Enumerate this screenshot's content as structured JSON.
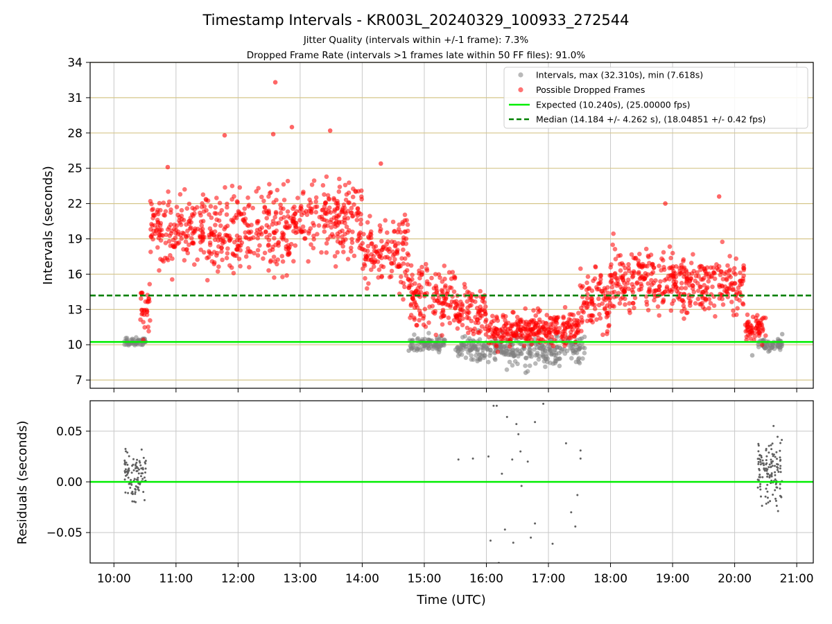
{
  "chart_data": [
    {
      "type": "scatter",
      "panel": "top",
      "title": "Timestamp Intervals - KR003L_20240329_100933_272544",
      "subtitle_lines": [
        "Jitter Quality (intervals within +/-1 frame): 7.3%",
        "Dropped Frame Rate (intervals >1 frames late within 50 FF files): 91.0%"
      ],
      "ylabel": "Intervals (seconds)",
      "xlim": [
        "09:37",
        "21:16"
      ],
      "ylim": [
        6.3,
        34
      ],
      "yticks": [
        7,
        10,
        13,
        16,
        19,
        22,
        25,
        28,
        31,
        34
      ],
      "grid": "on",
      "legend_position": "top-right",
      "legend": [
        "Intervals, max (32.310s), min (7.618s)",
        "Possible Dropped Frames",
        "Expected (10.240s), (25.00000 fps)",
        "Median (14.184 +/- 4.262 s), (18.04851 +/- 0.42 fps)"
      ],
      "reference_lines": {
        "expected": 10.24,
        "median": 14.184
      },
      "colors": {
        "intervals": "#808080",
        "dropped": "#ff0000",
        "expected": "#00ee00",
        "median": "#008000",
        "hgrid": "#d6c68a"
      },
      "series": [
        {
          "name": "Intervals, max (32.310s), min (7.618s)",
          "envelope": [
            {
              "start": "10:10",
              "end": "10:31",
              "center": 10.2,
              "spread": 0.45
            },
            {
              "start": "14:46",
              "end": "15:20",
              "center": 10.1,
              "spread": 0.6
            },
            {
              "start": "15:30",
              "end": "17:35",
              "center": 9.6,
              "spread": 1.2
            },
            {
              "start": "20:22",
              "end": "20:46",
              "center": 10.0,
              "spread": 0.5
            }
          ],
          "count": 520,
          "highlights": [
            {
              "x": "16:38",
              "y": 7.618
            },
            {
              "x": "14:45",
              "y": 9.5
            },
            {
              "x": "14:48",
              "y": 9.7
            },
            {
              "x": "20:17",
              "y": 9.1
            },
            {
              "x": "20:46",
              "y": 10.9
            }
          ]
        },
        {
          "name": "Possible Dropped Frames",
          "envelope": [
            {
              "start": "10:25",
              "end": "10:35",
              "center": 13.0,
              "spread": 2.2
            },
            {
              "start": "10:35",
              "end": "11:30",
              "center": 19.6,
              "spread": 3.0
            },
            {
              "start": "11:30",
              "end": "13:00",
              "center": 19.4,
              "spread": 3.1
            },
            {
              "start": "13:00",
              "end": "14:00",
              "center": 20.7,
              "spread": 2.8
            },
            {
              "start": "14:00",
              "end": "14:45",
              "center": 17.6,
              "spread": 2.8
            },
            {
              "start": "14:45",
              "end": "15:30",
              "center": 14.0,
              "spread": 2.6
            },
            {
              "start": "15:30",
              "end": "16:00",
              "center": 12.6,
              "spread": 2.0
            },
            {
              "start": "16:00",
              "end": "17:30",
              "center": 11.3,
              "spread": 1.4
            },
            {
              "start": "17:30",
              "end": "18:00",
              "center": 13.8,
              "spread": 2.4
            },
            {
              "start": "18:00",
              "end": "19:00",
              "center": 15.4,
              "spread": 2.5
            },
            {
              "start": "19:00",
              "end": "20:10",
              "center": 15.2,
              "spread": 2.4
            },
            {
              "start": "20:10",
              "end": "20:30",
              "center": 11.5,
              "spread": 1.2
            }
          ],
          "count": 1900,
          "highlights": [
            {
              "x": "12:36",
              "y": 32.31
            },
            {
              "x": "12:52",
              "y": 28.5
            },
            {
              "x": "13:29",
              "y": 28.2
            },
            {
              "x": "12:34",
              "y": 27.9
            },
            {
              "x": "11:47",
              "y": 27.8
            },
            {
              "x": "19:45",
              "y": 22.6
            },
            {
              "x": "18:53",
              "y": 22.0
            },
            {
              "x": "14:18",
              "y": 25.4
            },
            {
              "x": "10:52",
              "y": 25.1
            }
          ]
        }
      ]
    },
    {
      "type": "scatter",
      "panel": "bottom",
      "xlabel": "Time (UTC)",
      "ylabel": "Residuals (seconds)",
      "xlim": [
        "09:37",
        "21:16"
      ],
      "ylim": [
        -0.08,
        0.08
      ],
      "yticks": [
        -0.05,
        0.0,
        0.05
      ],
      "ytick_labels": [
        "−0.05",
        "0.00",
        "0.05"
      ],
      "xticks": [
        "10:00",
        "11:00",
        "12:00",
        "13:00",
        "14:00",
        "15:00",
        "16:00",
        "17:00",
        "18:00",
        "19:00",
        "20:00",
        "21:00"
      ],
      "grid": "on",
      "reference_lines": {
        "zero": 0.0
      },
      "colors": {
        "points": "#606060",
        "zero": "#00ee00",
        "grid": "#c8c8c8"
      },
      "series": [
        {
          "name": "",
          "clusters": [
            {
              "start": "10:10",
              "end": "10:31",
              "center": 0.008,
              "spread": 0.045,
              "count": 100
            },
            {
              "start": "15:30",
              "end": "17:35",
              "center": 0.0,
              "spread": 0.08,
              "count": 34
            },
            {
              "start": "20:22",
              "end": "20:46",
              "center": 0.012,
              "spread": 0.06,
              "count": 130
            }
          ],
          "points": [
            {
              "x": "15:33",
              "y": 0.022
            },
            {
              "x": "15:47",
              "y": 0.023
            },
            {
              "x": "16:02",
              "y": 0.025
            },
            {
              "x": "16:04",
              "y": -0.058
            },
            {
              "x": "16:07",
              "y": 0.075
            },
            {
              "x": "16:10",
              "y": 0.075
            },
            {
              "x": "16:12",
              "y": -0.08
            },
            {
              "x": "16:20",
              "y": 0.064
            },
            {
              "x": "16:29",
              "y": 0.057
            },
            {
              "x": "16:31",
              "y": 0.047
            },
            {
              "x": "16:34",
              "y": -0.004
            },
            {
              "x": "16:47",
              "y": -0.041
            },
            {
              "x": "16:47",
              "y": 0.059
            },
            {
              "x": "16:55",
              "y": 0.077
            },
            {
              "x": "17:04",
              "y": -0.061
            },
            {
              "x": "17:17",
              "y": 0.038
            },
            {
              "x": "17:22",
              "y": -0.03
            },
            {
              "x": "17:26",
              "y": -0.044
            },
            {
              "x": "17:28",
              "y": -0.013
            },
            {
              "x": "17:31",
              "y": 0.031
            },
            {
              "x": "17:31",
              "y": 0.023
            },
            {
              "x": "16:15",
              "y": 0.008
            },
            {
              "x": "16:25",
              "y": 0.022
            },
            {
              "x": "16:40",
              "y": 0.02
            },
            {
              "x": "16:18",
              "y": -0.047
            },
            {
              "x": "16:43",
              "y": -0.055
            },
            {
              "x": "16:26",
              "y": -0.06
            },
            {
              "x": "16:33",
              "y": 0.03
            }
          ]
        }
      ]
    }
  ]
}
